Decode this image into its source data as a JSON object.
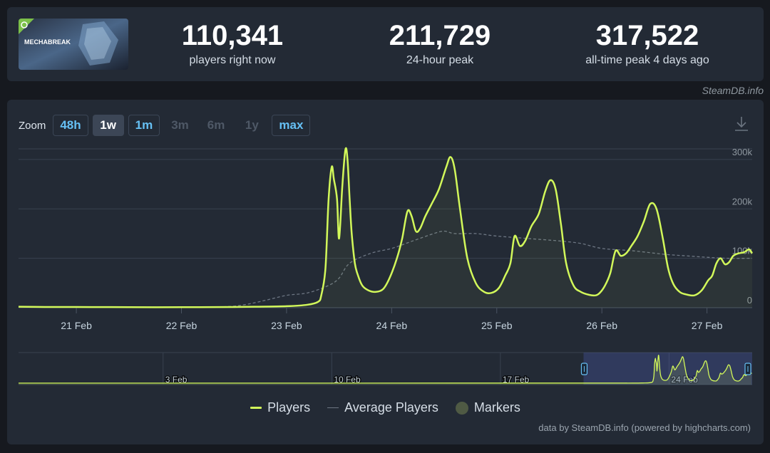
{
  "header": {
    "game_logo_text": "MECHABREAK",
    "stats": [
      {
        "value": "110,341",
        "label": "players right now"
      },
      {
        "value": "211,729",
        "label": "24-hour peak"
      },
      {
        "value": "317,522",
        "label": "all-time peak 4 days ago"
      }
    ]
  },
  "brand": "SteamDB.info",
  "zoom": {
    "label": "Zoom",
    "buttons": [
      {
        "label": "48h",
        "state": "enabled"
      },
      {
        "label": "1w",
        "state": "active"
      },
      {
        "label": "1m",
        "state": "enabled"
      },
      {
        "label": "3m",
        "state": "disabled"
      },
      {
        "label": "6m",
        "state": "disabled"
      },
      {
        "label": "1y",
        "state": "disabled"
      },
      {
        "label": "max",
        "state": "enabled"
      }
    ]
  },
  "icons": {
    "download": "download-icon",
    "navigator_handles": "navigator-handle-icon"
  },
  "colors": {
    "players": "#d2f85a",
    "average": "#6d7683",
    "markers": "#4f5a44",
    "background": "#232a35"
  },
  "legend": {
    "players": "Players",
    "average": "Average Players",
    "markers": "Markers"
  },
  "credits": "data by SteamDB.info (powered by highcharts.com)",
  "chart_data": {
    "type": "line",
    "x_unit": "days (Feb 2025 date axis; integer = 00:00 of that day)",
    "xlim": [
      20.45,
      27.43
    ],
    "ylim": [
      0,
      320000
    ],
    "y_ticks": [
      0,
      100000,
      200000,
      300000
    ],
    "y_tick_labels": [
      "0",
      "100k",
      "200k",
      "300k"
    ],
    "x_ticks": [
      21,
      22,
      23,
      24,
      25,
      26,
      27
    ],
    "x_tick_labels": [
      "21 Feb",
      "22 Feb",
      "23 Feb",
      "24 Feb",
      "25 Feb",
      "26 Feb",
      "27 Feb"
    ],
    "grid": true,
    "legend_position": "bottom-center",
    "series": [
      {
        "name": "Players",
        "x": [
          20.45,
          20.7,
          21.0,
          21.5,
          22.0,
          22.5,
          22.7,
          23.0,
          23.2,
          23.3,
          23.33,
          23.37,
          23.4,
          23.43,
          23.45,
          23.48,
          23.5,
          23.53,
          23.56,
          23.58,
          23.6,
          23.62,
          23.65,
          23.68,
          23.72,
          23.78,
          23.85,
          23.92,
          23.98,
          24.05,
          24.1,
          24.15,
          24.19,
          24.23,
          24.27,
          24.32,
          24.38,
          24.45,
          24.52,
          24.56,
          24.6,
          24.65,
          24.72,
          24.8,
          24.88,
          24.95,
          25.02,
          25.08,
          25.13,
          25.17,
          25.22,
          25.27,
          25.33,
          25.4,
          25.46,
          25.51,
          25.56,
          25.61,
          25.66,
          25.73,
          25.8,
          25.88,
          25.94,
          25.98,
          26.03,
          26.08,
          26.13,
          26.18,
          26.23,
          26.28,
          26.34,
          26.4,
          26.46,
          26.52,
          26.58,
          26.63,
          26.68,
          26.74,
          26.8,
          26.88,
          26.95,
          27.01,
          27.05,
          27.09,
          27.13,
          27.17,
          27.21,
          27.25,
          27.3,
          27.35,
          27.4,
          27.43
        ],
        "y": [
          2000,
          1500,
          1500,
          1000,
          1000,
          1500,
          2000,
          3000,
          6000,
          12000,
          25000,
          80000,
          220000,
          285000,
          260000,
          220000,
          140000,
          245000,
          320000,
          300000,
          220000,
          150000,
          90000,
          65000,
          45000,
          35000,
          32000,
          38000,
          60000,
          100000,
          140000,
          195000,
          185000,
          155000,
          160000,
          185000,
          210000,
          240000,
          285000,
          305000,
          280000,
          200000,
          100000,
          50000,
          32000,
          30000,
          40000,
          65000,
          90000,
          145000,
          125000,
          135000,
          165000,
          190000,
          235000,
          258000,
          240000,
          170000,
          90000,
          45000,
          32000,
          26000,
          25000,
          30000,
          45000,
          70000,
          115000,
          105000,
          110000,
          125000,
          145000,
          175000,
          210000,
          200000,
          140000,
          80000,
          48000,
          32000,
          27000,
          25000,
          35000,
          55000,
          65000,
          90000,
          100000,
          88000,
          92000,
          105000,
          110000,
          112000,
          118000,
          110000
        ]
      },
      {
        "name": "Average Players",
        "x": [
          20.45,
          21.0,
          22.0,
          22.4,
          22.6,
          22.8,
          23.0,
          23.2,
          23.4,
          23.5,
          23.6,
          23.8,
          24.0,
          24.2,
          24.4,
          24.5,
          24.6,
          24.8,
          25.0,
          25.3,
          25.6,
          25.8,
          26.0,
          26.3,
          26.6,
          26.8,
          27.0,
          27.2,
          27.43
        ],
        "y": [
          1500,
          1500,
          1500,
          2000,
          6000,
          15000,
          25000,
          30000,
          45000,
          60000,
          90000,
          110000,
          120000,
          135000,
          150000,
          155000,
          150000,
          150000,
          145000,
          140000,
          135000,
          130000,
          120000,
          115000,
          108000,
          105000,
          102000,
          100000,
          100000
        ]
      }
    ],
    "navigator": {
      "x_tick_labels": [
        "3 Feb",
        "10 Feb",
        "17 Feb",
        "24 Feb"
      ],
      "x_ticks": [
        3,
        10,
        17,
        24
      ]
    }
  }
}
